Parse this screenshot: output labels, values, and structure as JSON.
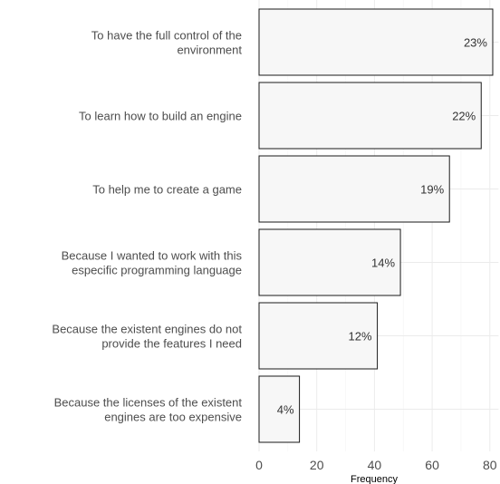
{
  "chart_data": {
    "type": "bar",
    "orientation": "horizontal",
    "categories": [
      [
        "To have the full control of the",
        "environment"
      ],
      [
        "To learn how to build an engine"
      ],
      [
        "To help me to create a game"
      ],
      [
        "Because I wanted to work with this",
        "especific programming language"
      ],
      [
        "Because the existent engines do not",
        "provide the features I need"
      ],
      [
        "Because the licenses of the existent",
        "engines are too expensive"
      ]
    ],
    "values": [
      81,
      77,
      66,
      49,
      41,
      14
    ],
    "labels": [
      "23%",
      "22%",
      "19%",
      "14%",
      "12%",
      "4%"
    ],
    "xlabel": "Frequency",
    "ylabel": "",
    "xlim": [
      0,
      83
    ],
    "xticks": [
      0,
      20,
      40,
      60,
      80
    ],
    "grid": true,
    "colors": {
      "bar_fill": "#f7f7f7",
      "bar_stroke": "#1a1a1a",
      "grid": "#ebebeb"
    }
  }
}
